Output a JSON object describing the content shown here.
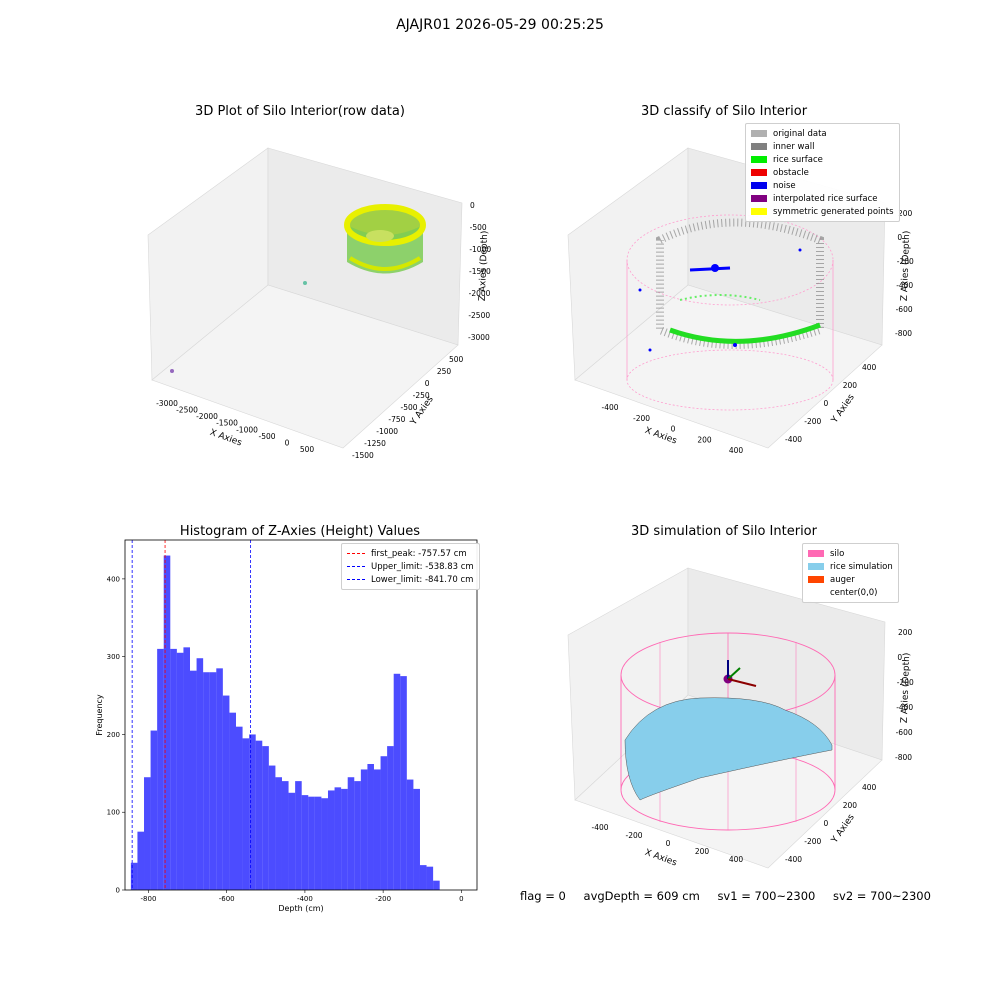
{
  "figure_title": "AJAJR01 2026-05-29 00:25:25",
  "panels": {
    "raw": {
      "title": "3D Plot of Silo Interior(row data)",
      "xlabel": "X Axies",
      "ylabel": "Y Axies",
      "zlabel": "Z Axies (Depth)",
      "xticks": [
        "-3000",
        "-2500",
        "-2000",
        "-1500",
        "-1000",
        "-500",
        "0",
        "500"
      ],
      "yticks": [
        "500",
        "250",
        "0",
        "-250",
        "-500",
        "-750",
        "-1000",
        "-1250",
        "-1500"
      ],
      "zticks": [
        "0",
        "-500",
        "-1000",
        "-1500",
        "-2000",
        "-2500",
        "-3000"
      ]
    },
    "classify": {
      "title": "3D classify of Silo Interior",
      "xlabel": "X Axies",
      "ylabel": "Y Axies",
      "zlabel": "Z Axies (Depth)",
      "xticks": [
        "-400",
        "-200",
        "0",
        "200",
        "400"
      ],
      "yticks": [
        "400",
        "200",
        "0",
        "-200",
        "-400"
      ],
      "zticks": [
        "200",
        "0",
        "-200",
        "-400",
        "-600",
        "-800"
      ],
      "legend": [
        {
          "label": "original data",
          "color": "#b0b0b0"
        },
        {
          "label": "inner wall",
          "color": "#808080"
        },
        {
          "label": "rice surface",
          "color": "#00ee00"
        },
        {
          "label": "obstacle",
          "color": "#ee0000"
        },
        {
          "label": "noise",
          "color": "#0000ee"
        },
        {
          "label": "interpolated rice surface",
          "color": "#800080"
        },
        {
          "label": "symmetric generated points",
          "color": "#ffff00"
        }
      ]
    },
    "simulation": {
      "title": "3D simulation of Silo Interior",
      "xlabel": "X Axies",
      "ylabel": "Y Axies",
      "zlabel": "Z Axies (Depth)",
      "xticks": [
        "-400",
        "-200",
        "0",
        "200",
        "400"
      ],
      "yticks": [
        "400",
        "200",
        "0",
        "-200",
        "-400"
      ],
      "zticks": [
        "200",
        "0",
        "-200",
        "-400",
        "-600",
        "-800"
      ],
      "legend": [
        {
          "label": "silo",
          "color": "#ff69b4"
        },
        {
          "label": "rice simulation",
          "color": "#87ceeb"
        },
        {
          "label": "auger",
          "color": "#ff4500"
        },
        {
          "label": "center(0,0)",
          "color": ""
        }
      ]
    }
  },
  "chart_data": {
    "type": "bar",
    "title": "Histogram of Z-Axies (Height) Values",
    "xlabel": "Depth (cm)",
    "ylabel": "Frequency",
    "xlim": [
      -860,
      40
    ],
    "ylim": [
      0,
      450
    ],
    "xticks": [
      -800,
      -600,
      -400,
      -200,
      0
    ],
    "yticks": [
      0,
      100,
      200,
      300,
      400
    ],
    "bin_start": -845,
    "bin_width": 16.8,
    "values": [
      35,
      75,
      145,
      205,
      310,
      430,
      310,
      305,
      312,
      282,
      298,
      280,
      280,
      285,
      250,
      228,
      210,
      195,
      200,
      192,
      185,
      160,
      145,
      140,
      125,
      140,
      122,
      120,
      120,
      118,
      128,
      132,
      130,
      145,
      140,
      155,
      162,
      155,
      172,
      185,
      278,
      275,
      142,
      130,
      32,
      30,
      12
    ],
    "color": "#0000ff",
    "vlines": [
      {
        "label": "first_peak: -757.57 cm",
        "x": -757.57,
        "color": "#ff0000"
      },
      {
        "label": "Upper_limit: -538.83 cm",
        "x": -538.83,
        "color": "#0000ff"
      },
      {
        "label": "Lower_limit: -841.70 cm",
        "x": -841.7,
        "color": "#0000ff"
      }
    ],
    "legend_position": "top-right"
  },
  "footer": {
    "flag": "flag = 0",
    "avg_depth": "avgDepth = 609 cm",
    "sv1": "sv1 = 700~2300",
    "sv2": "sv2 = 700~2300"
  }
}
